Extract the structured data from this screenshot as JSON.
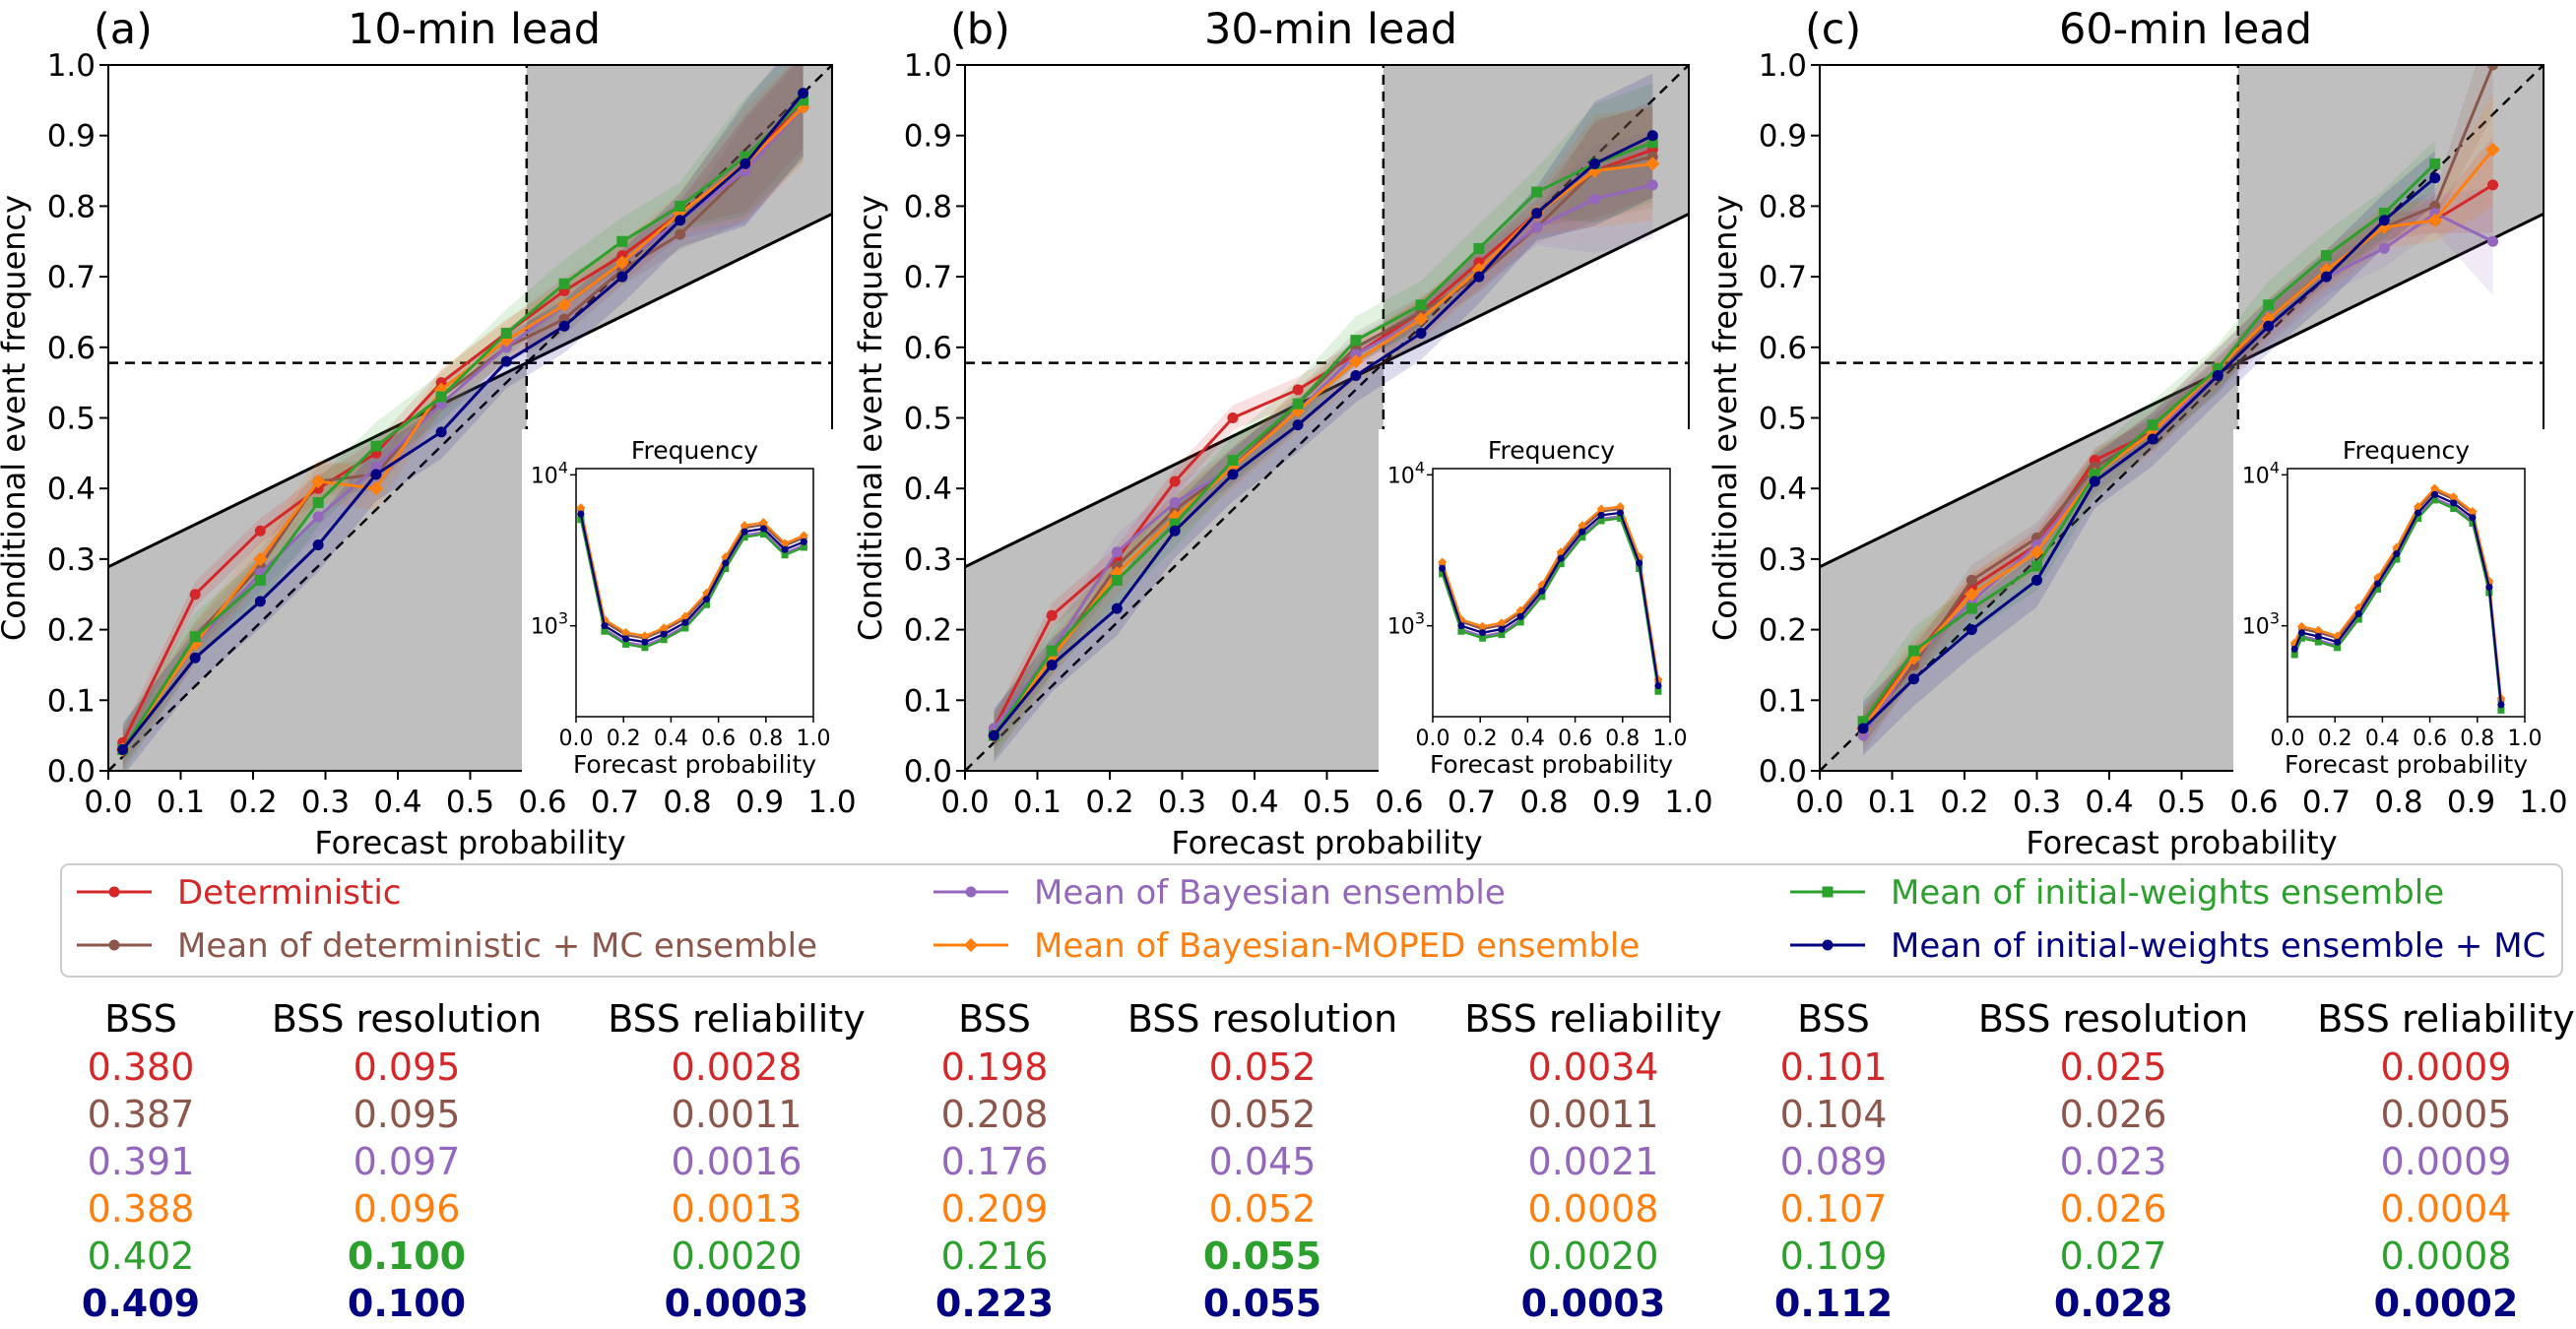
{
  "chart_data": [
    {
      "type": "line",
      "panel_label": "(a)",
      "title": "10-min lead",
      "xlabel": "Forecast probability",
      "ylabel": "Conditional event frequency",
      "xlim": [
        0,
        1
      ],
      "ylim": [
        0,
        1
      ],
      "xticks": [
        "0.0",
        "0.1",
        "0.2",
        "0.3",
        "0.4",
        "0.5",
        "0.6",
        "0.7",
        "0.8",
        "0.9",
        "1.0"
      ],
      "yticks": [
        "0.0",
        "0.1",
        "0.2",
        "0.3",
        "0.4",
        "0.5",
        "0.6",
        "0.7",
        "0.8",
        "0.9",
        "1.0"
      ],
      "climatology": 0.578,
      "series": [
        {
          "name": "Deterministic",
          "color": "#d62728",
          "marker": "circle",
          "x": [
            0.02,
            0.12,
            0.21,
            0.29,
            0.37,
            0.46,
            0.55,
            0.63,
            0.71,
            0.79,
            0.88,
            0.96
          ],
          "y": [
            0.04,
            0.25,
            0.34,
            0.4,
            0.45,
            0.55,
            0.62,
            0.68,
            0.73,
            0.79,
            0.86,
            0.95
          ]
        },
        {
          "name": "Mean of deterministic + MC ensemble",
          "color": "#8c564b",
          "marker": "circle",
          "x": [
            0.02,
            0.12,
            0.21,
            0.29,
            0.37,
            0.46,
            0.55,
            0.63,
            0.71,
            0.79,
            0.88,
            0.96
          ],
          "y": [
            0.03,
            0.19,
            0.29,
            0.41,
            0.42,
            0.53,
            0.6,
            0.64,
            0.71,
            0.76,
            0.85,
            0.94
          ]
        },
        {
          "name": "Mean of Bayesian ensemble",
          "color": "#9467bd",
          "marker": "circle",
          "x": [
            0.02,
            0.12,
            0.21,
            0.29,
            0.37,
            0.46,
            0.55,
            0.63,
            0.71,
            0.79,
            0.88,
            0.96
          ],
          "y": [
            0.03,
            0.18,
            0.28,
            0.36,
            0.43,
            0.52,
            0.6,
            0.66,
            0.72,
            0.78,
            0.85,
            0.94
          ]
        },
        {
          "name": "Mean of Bayesian-MOPED ensemble",
          "color": "#ff7f0e",
          "marker": "diamond",
          "x": [
            0.02,
            0.12,
            0.21,
            0.29,
            0.37,
            0.46,
            0.55,
            0.63,
            0.71,
            0.79,
            0.88,
            0.96
          ],
          "y": [
            0.03,
            0.18,
            0.3,
            0.41,
            0.4,
            0.54,
            0.61,
            0.66,
            0.72,
            0.79,
            0.86,
            0.94
          ]
        },
        {
          "name": "Mean of initial-weights ensemble",
          "color": "#2ca02c",
          "marker": "square",
          "x": [
            0.02,
            0.12,
            0.21,
            0.29,
            0.37,
            0.46,
            0.55,
            0.63,
            0.71,
            0.79,
            0.88,
            0.96
          ],
          "y": [
            0.03,
            0.19,
            0.27,
            0.38,
            0.46,
            0.53,
            0.62,
            0.69,
            0.75,
            0.8,
            0.87,
            0.95
          ]
        },
        {
          "name": "Mean of initial-weights ensemble + MC",
          "color": "#000080",
          "marker": "circle",
          "x": [
            0.02,
            0.12,
            0.21,
            0.29,
            0.37,
            0.46,
            0.55,
            0.63,
            0.71,
            0.79,
            0.88,
            0.96
          ],
          "y": [
            0.03,
            0.16,
            0.24,
            0.32,
            0.42,
            0.48,
            0.58,
            0.63,
            0.7,
            0.78,
            0.86,
            0.96
          ]
        }
      ],
      "inset": {
        "title": "Frequency",
        "xlabel": "Forecast probability",
        "yticks": [
          "10^3",
          "10^4"
        ],
        "xticks": [
          "0.0",
          "0.2",
          "0.4",
          "0.6",
          "0.8",
          "1.0"
        ],
        "x": [
          0.02,
          0.12,
          0.21,
          0.29,
          0.37,
          0.46,
          0.55,
          0.63,
          0.71,
          0.79,
          0.88,
          0.96
        ],
        "y": [
          5500,
          1000,
          820,
          780,
          880,
          1050,
          1500,
          2600,
          4200,
          4400,
          3200,
          3600
        ]
      }
    },
    {
      "type": "line",
      "panel_label": "(b)",
      "title": "30-min lead",
      "xlabel": "Forecast probability",
      "ylabel": "Conditional event frequency",
      "xlim": [
        0,
        1
      ],
      "ylim": [
        0,
        1
      ],
      "xticks": [
        "0.0",
        "0.1",
        "0.2",
        "0.3",
        "0.4",
        "0.5",
        "0.6",
        "0.7",
        "0.8",
        "0.9",
        "1.0"
      ],
      "yticks": [
        "0.0",
        "0.1",
        "0.2",
        "0.3",
        "0.4",
        "0.5",
        "0.6",
        "0.7",
        "0.8",
        "0.9",
        "1.0"
      ],
      "climatology": 0.578,
      "series": [
        {
          "name": "Deterministic",
          "color": "#d62728",
          "marker": "circle",
          "x": [
            0.04,
            0.12,
            0.21,
            0.29,
            0.37,
            0.46,
            0.54,
            0.63,
            0.71,
            0.79,
            0.87,
            0.95
          ],
          "y": [
            0.06,
            0.22,
            0.3,
            0.41,
            0.5,
            0.54,
            0.59,
            0.65,
            0.72,
            0.79,
            0.85,
            0.88
          ]
        },
        {
          "name": "Mean of deterministic + MC ensemble",
          "color": "#8c564b",
          "marker": "circle",
          "x": [
            0.04,
            0.12,
            0.21,
            0.29,
            0.37,
            0.46,
            0.54,
            0.63,
            0.71,
            0.79,
            0.87,
            0.95
          ],
          "y": [
            0.05,
            0.16,
            0.29,
            0.37,
            0.43,
            0.52,
            0.6,
            0.65,
            0.7,
            0.77,
            0.85,
            0.87
          ]
        },
        {
          "name": "Mean of Bayesian ensemble",
          "color": "#9467bd",
          "marker": "circle",
          "x": [
            0.04,
            0.12,
            0.21,
            0.29,
            0.37,
            0.46,
            0.54,
            0.63,
            0.71,
            0.79,
            0.87,
            0.95
          ],
          "y": [
            0.06,
            0.17,
            0.31,
            0.38,
            0.43,
            0.51,
            0.59,
            0.64,
            0.71,
            0.77,
            0.81,
            0.83
          ]
        },
        {
          "name": "Mean of Bayesian-MOPED ensemble",
          "color": "#ff7f0e",
          "marker": "diamond",
          "x": [
            0.04,
            0.12,
            0.21,
            0.29,
            0.37,
            0.46,
            0.54,
            0.63,
            0.71,
            0.79,
            0.87,
            0.95
          ],
          "y": [
            0.05,
            0.16,
            0.28,
            0.36,
            0.43,
            0.51,
            0.58,
            0.64,
            0.71,
            0.79,
            0.85,
            0.86
          ]
        },
        {
          "name": "Mean of initial-weights ensemble",
          "color": "#2ca02c",
          "marker": "square",
          "x": [
            0.04,
            0.12,
            0.21,
            0.29,
            0.37,
            0.46,
            0.54,
            0.63,
            0.71,
            0.79,
            0.87,
            0.95
          ],
          "y": [
            0.05,
            0.17,
            0.27,
            0.35,
            0.44,
            0.52,
            0.61,
            0.66,
            0.74,
            0.82,
            0.86,
            0.89
          ]
        },
        {
          "name": "Mean of initial-weights ensemble + MC",
          "color": "#000080",
          "marker": "circle",
          "x": [
            0.04,
            0.12,
            0.21,
            0.29,
            0.37,
            0.46,
            0.54,
            0.63,
            0.71,
            0.79,
            0.87,
            0.95
          ],
          "y": [
            0.05,
            0.15,
            0.23,
            0.34,
            0.42,
            0.49,
            0.56,
            0.62,
            0.7,
            0.79,
            0.86,
            0.9
          ]
        }
      ],
      "inset": {
        "title": "Frequency",
        "xlabel": "Forecast probability",
        "yticks": [
          "10^3",
          "10^4"
        ],
        "xticks": [
          "0.0",
          "0.2",
          "0.4",
          "0.6",
          "0.8",
          "1.0"
        ],
        "x": [
          0.04,
          0.12,
          0.21,
          0.29,
          0.37,
          0.46,
          0.54,
          0.63,
          0.71,
          0.79,
          0.87,
          0.95
        ],
        "y": [
          2400,
          1000,
          900,
          950,
          1150,
          1700,
          2800,
          4200,
          5400,
          5600,
          2600,
          400
        ]
      }
    },
    {
      "type": "line",
      "panel_label": "(c)",
      "title": "60-min lead",
      "xlabel": "Forecast probability",
      "ylabel": "Conditional event frequency",
      "xlim": [
        0,
        1
      ],
      "ylim": [
        0,
        1
      ],
      "xticks": [
        "0.0",
        "0.1",
        "0.2",
        "0.3",
        "0.4",
        "0.5",
        "0.6",
        "0.7",
        "0.8",
        "0.9",
        "1.0"
      ],
      "yticks": [
        "0.0",
        "0.1",
        "0.2",
        "0.3",
        "0.4",
        "0.5",
        "0.6",
        "0.7",
        "0.8",
        "0.9",
        "1.0"
      ],
      "climatology": 0.578,
      "series": [
        {
          "name": "Deterministic",
          "color": "#d62728",
          "marker": "circle",
          "x": [
            0.06,
            0.13,
            0.21,
            0.3,
            0.38,
            0.46,
            0.55,
            0.62,
            0.7,
            0.78,
            0.85,
            0.93
          ],
          "y": [
            0.07,
            0.16,
            0.26,
            0.32,
            0.44,
            0.48,
            0.57,
            0.64,
            0.71,
            0.77,
            0.78,
            0.83
          ]
        },
        {
          "name": "Mean of deterministic + MC ensemble",
          "color": "#8c564b",
          "marker": "circle",
          "x": [
            0.06,
            0.13,
            0.21,
            0.3,
            0.38,
            0.46,
            0.55,
            0.62,
            0.7,
            0.78,
            0.85,
            0.93
          ],
          "y": [
            0.06,
            0.15,
            0.27,
            0.33,
            0.43,
            0.48,
            0.56,
            0.64,
            0.71,
            0.77,
            0.8,
            1.0
          ]
        },
        {
          "name": "Mean of Bayesian ensemble",
          "color": "#9467bd",
          "marker": "circle",
          "x": [
            0.06,
            0.13,
            0.21,
            0.3,
            0.38,
            0.46,
            0.55,
            0.62,
            0.7,
            0.78,
            0.85,
            0.93
          ],
          "y": [
            0.05,
            0.16,
            0.24,
            0.32,
            0.42,
            0.48,
            0.56,
            0.63,
            0.7,
            0.74,
            0.79,
            0.75
          ]
        },
        {
          "name": "Mean of Bayesian-MOPED ensemble",
          "color": "#ff7f0e",
          "marker": "diamond",
          "x": [
            0.06,
            0.13,
            0.21,
            0.3,
            0.38,
            0.46,
            0.55,
            0.62,
            0.7,
            0.78,
            0.85,
            0.93
          ],
          "y": [
            0.06,
            0.16,
            0.25,
            0.31,
            0.42,
            0.48,
            0.57,
            0.64,
            0.71,
            0.77,
            0.78,
            0.88
          ]
        },
        {
          "name": "Mean of initial-weights ensemble",
          "color": "#2ca02c",
          "marker": "square",
          "x": [
            0.06,
            0.13,
            0.21,
            0.3,
            0.38,
            0.46,
            0.55,
            0.62,
            0.7,
            0.78,
            0.85
          ],
          "y": [
            0.07,
            0.17,
            0.23,
            0.29,
            0.42,
            0.49,
            0.57,
            0.66,
            0.73,
            0.79,
            0.86
          ]
        },
        {
          "name": "Mean of initial-weights ensemble + MC",
          "color": "#000080",
          "marker": "circle",
          "x": [
            0.06,
            0.13,
            0.21,
            0.3,
            0.38,
            0.46,
            0.55,
            0.62,
            0.7,
            0.78,
            0.85
          ],
          "y": [
            0.06,
            0.13,
            0.2,
            0.27,
            0.41,
            0.47,
            0.56,
            0.63,
            0.7,
            0.78,
            0.84
          ]
        }
      ],
      "inset": {
        "title": "Frequency",
        "xlabel": "Forecast probability",
        "yticks": [
          "10^3",
          "10^4"
        ],
        "xticks": [
          "0.0",
          "0.2",
          "0.4",
          "0.6",
          "0.8",
          "1.0"
        ],
        "x": [
          0.03,
          0.06,
          0.13,
          0.21,
          0.3,
          0.38,
          0.46,
          0.55,
          0.62,
          0.7,
          0.78,
          0.85,
          0.9
        ],
        "y": [
          700,
          900,
          850,
          780,
          1200,
          1900,
          3000,
          5600,
          7400,
          6500,
          5200,
          1800,
          300
        ]
      }
    }
  ],
  "legend": [
    {
      "label": "Deterministic",
      "color": "#d62728",
      "marker": "circle"
    },
    {
      "label": "Mean of deterministic + MC ensemble",
      "color": "#8c564b",
      "marker": "circle"
    },
    {
      "label": "Mean of Bayesian ensemble",
      "color": "#9467bd",
      "marker": "circle"
    },
    {
      "label": "Mean of Bayesian-MOPED ensemble",
      "color": "#ff7f0e",
      "marker": "diamond"
    },
    {
      "label": "Mean of initial-weights ensemble",
      "color": "#2ca02c",
      "marker": "square"
    },
    {
      "label": "Mean of initial-weights ensemble + MC",
      "color": "#000080",
      "marker": "circle"
    }
  ],
  "table": {
    "headers": [
      "BSS",
      "BSS resolution",
      "BSS reliability",
      "BSS",
      "BSS resolution",
      "BSS reliability",
      "BSS",
      "BSS resolution",
      "BSS reliability"
    ],
    "row_colors": [
      "#d62728",
      "#8c564b",
      "#9467bd",
      "#ff7f0e",
      "#2ca02c",
      "#000080"
    ],
    "columns": [
      [
        "0.380",
        "0.387",
        "0.391",
        "0.388",
        "0.402",
        "0.409"
      ],
      [
        "0.095",
        "0.095",
        "0.097",
        "0.096",
        "0.100",
        "0.100"
      ],
      [
        "0.0028",
        "0.0011",
        "0.0016",
        "0.0013",
        "0.0020",
        "0.0003"
      ],
      [
        "0.198",
        "0.208",
        "0.176",
        "0.209",
        "0.216",
        "0.223"
      ],
      [
        "0.052",
        "0.052",
        "0.045",
        "0.052",
        "0.055",
        "0.055"
      ],
      [
        "0.0034",
        "0.0011",
        "0.0021",
        "0.0008",
        "0.0020",
        "0.0003"
      ],
      [
        "0.101",
        "0.104",
        "0.089",
        "0.107",
        "0.109",
        "0.112"
      ],
      [
        "0.025",
        "0.026",
        "0.023",
        "0.026",
        "0.027",
        "0.028"
      ],
      [
        "0.0009",
        "0.0005",
        "0.0009",
        "0.0004",
        "0.0008",
        "0.0002"
      ]
    ],
    "bold_cells": [
      [
        0,
        5
      ],
      [
        1,
        4
      ],
      [
        1,
        5
      ],
      [
        2,
        5
      ],
      [
        3,
        5
      ],
      [
        4,
        4
      ],
      [
        4,
        5
      ],
      [
        5,
        5
      ],
      [
        6,
        5
      ],
      [
        7,
        5
      ],
      [
        8,
        5
      ]
    ]
  }
}
